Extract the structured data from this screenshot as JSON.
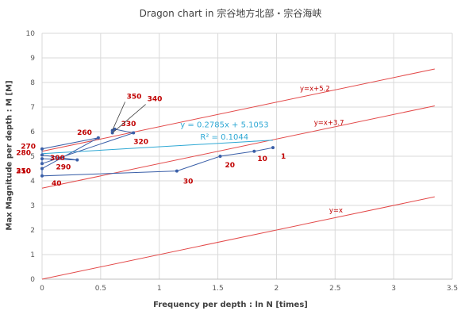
{
  "chart_data": {
    "type": "scatter",
    "title": "Dragon chart in 宗谷地方北部・宗谷海峡",
    "xlabel": "Frequency per depth : ln N [times]",
    "ylabel": "Max Magnitude per depth : M [M]",
    "xlim": [
      0,
      3.5
    ],
    "ylim": [
      0,
      10
    ],
    "xticks": [
      "0",
      "0.5",
      "1",
      "1.5",
      "2",
      "2.5",
      "3",
      "3.5"
    ],
    "yticks": [
      "0",
      "1",
      "2",
      "3",
      "4",
      "5",
      "6",
      "7",
      "8",
      "9",
      "10"
    ],
    "grid": true,
    "series": [
      {
        "points": [
          {
            "label": "1",
            "x": 1.97,
            "y": 5.35
          },
          {
            "label": "10",
            "x": 1.81,
            "y": 5.2
          },
          {
            "label": "20",
            "x": 1.52,
            "y": 5.0
          },
          {
            "label": "30",
            "x": 1.15,
            "y": 4.4
          },
          {
            "label": "40",
            "x": 0.0,
            "y": 4.2
          },
          {
            "label": "250",
            "x": 0.0,
            "y": 4.5
          },
          {
            "label": "260",
            "x": 0.48,
            "y": 5.75
          },
          {
            "label": "270",
            "x": 0.0,
            "y": 5.3
          },
          {
            "label": "280",
            "x": 0.0,
            "y": 5.05
          },
          {
            "label": "290",
            "x": 0.3,
            "y": 4.85
          },
          {
            "label": "300",
            "x": 0.0,
            "y": 4.9
          },
          {
            "label": "310",
            "x": 0.0,
            "y": 4.7
          },
          {
            "label": "320",
            "x": 0.78,
            "y": 5.95
          },
          {
            "label": "330",
            "x": 0.62,
            "y": 6.1
          },
          {
            "label": "340",
            "x": 0.6,
            "y": 5.95
          },
          {
            "label": "350",
            "x": 0.6,
            "y": 6.05
          }
        ]
      }
    ],
    "reference_lines": [
      {
        "label": "y=x+5.2",
        "slope": 1,
        "intercept": 5.2
      },
      {
        "label": "y=x+3.7",
        "slope": 1,
        "intercept": 3.7
      },
      {
        "label": "y=x",
        "slope": 1,
        "intercept": 0
      }
    ],
    "trendline": {
      "equation": "y = 0.2785x + 5.1053",
      "r2": "R² = 0.1044",
      "slope": 0.2785,
      "intercept": 5.1053,
      "x_range": [
        0,
        1.97
      ]
    },
    "colors": {
      "points": "#3a5fa8",
      "connect_line": "#3a5fa8",
      "reference_line": "#e34a4a",
      "trendline": "#2ea8d4",
      "point_label": "#c00000",
      "grid": "#d9d9d9"
    }
  }
}
